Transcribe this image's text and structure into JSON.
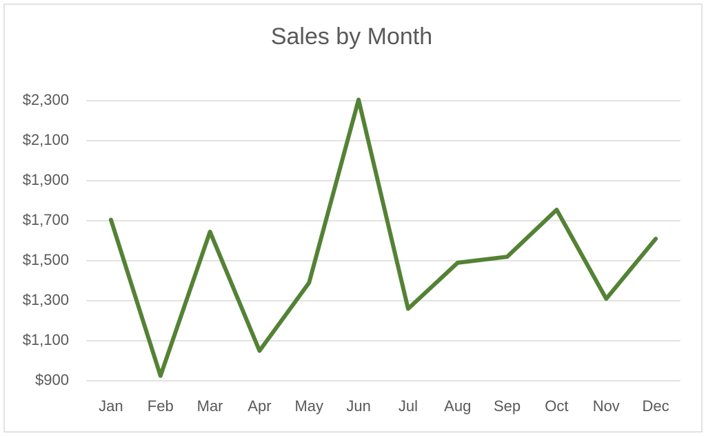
{
  "chart_data": {
    "type": "line",
    "title": "Sales by Month",
    "categories": [
      "Jan",
      "Feb",
      "Mar",
      "Apr",
      "May",
      "Jun",
      "Jul",
      "Aug",
      "Sep",
      "Oct",
      "Nov",
      "Dec"
    ],
    "values": [
      1705,
      925,
      1645,
      1050,
      1390,
      2305,
      1260,
      1490,
      1520,
      1755,
      1310,
      1610
    ],
    "color": "#548235",
    "ylim": [
      900,
      2300
    ],
    "yticks": [
      {
        "value": 900,
        "label": "$900"
      },
      {
        "value": 1100,
        "label": "$1,100"
      },
      {
        "value": 1300,
        "label": "$1,300"
      },
      {
        "value": 1500,
        "label": "$1,500"
      },
      {
        "value": 1700,
        "label": "$1,700"
      },
      {
        "value": 1900,
        "label": "$1,900"
      },
      {
        "value": 2100,
        "label": "$2,100"
      },
      {
        "value": 2300,
        "label": "$2,300"
      }
    ],
    "grid": true
  }
}
